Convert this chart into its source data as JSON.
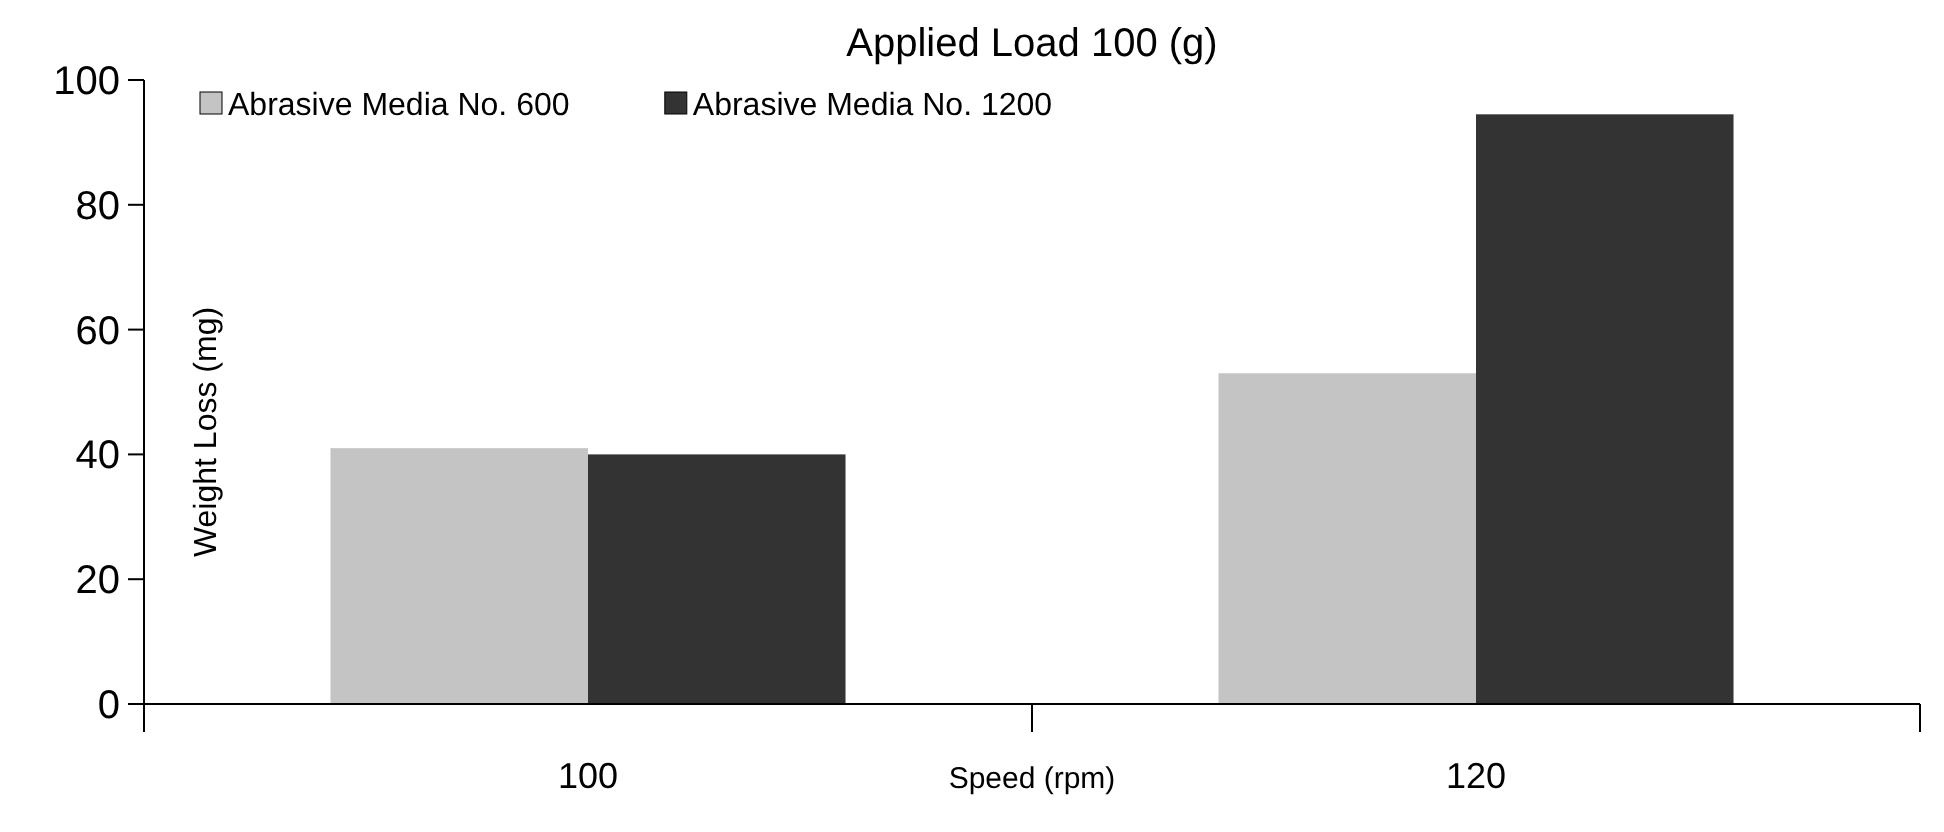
{
  "chart_data": {
    "type": "bar",
    "title": "Applied Load 100 (g)",
    "xlabel": "Speed (rpm)",
    "ylabel": "Weight Loss (mg)",
    "categories": [
      "100",
      "120"
    ],
    "series": [
      {
        "name": "Abrasive Media No. 600",
        "color": "#c4c4c4",
        "values": [
          41,
          53
        ]
      },
      {
        "name": "Abrasive Media No. 1200",
        "color": "#333333",
        "values": [
          40,
          94.5
        ]
      }
    ],
    "ylim": [
      0,
      100
    ],
    "yticks": [
      0,
      20,
      40,
      60,
      80,
      100
    ],
    "legend": "top left",
    "grid": false
  }
}
